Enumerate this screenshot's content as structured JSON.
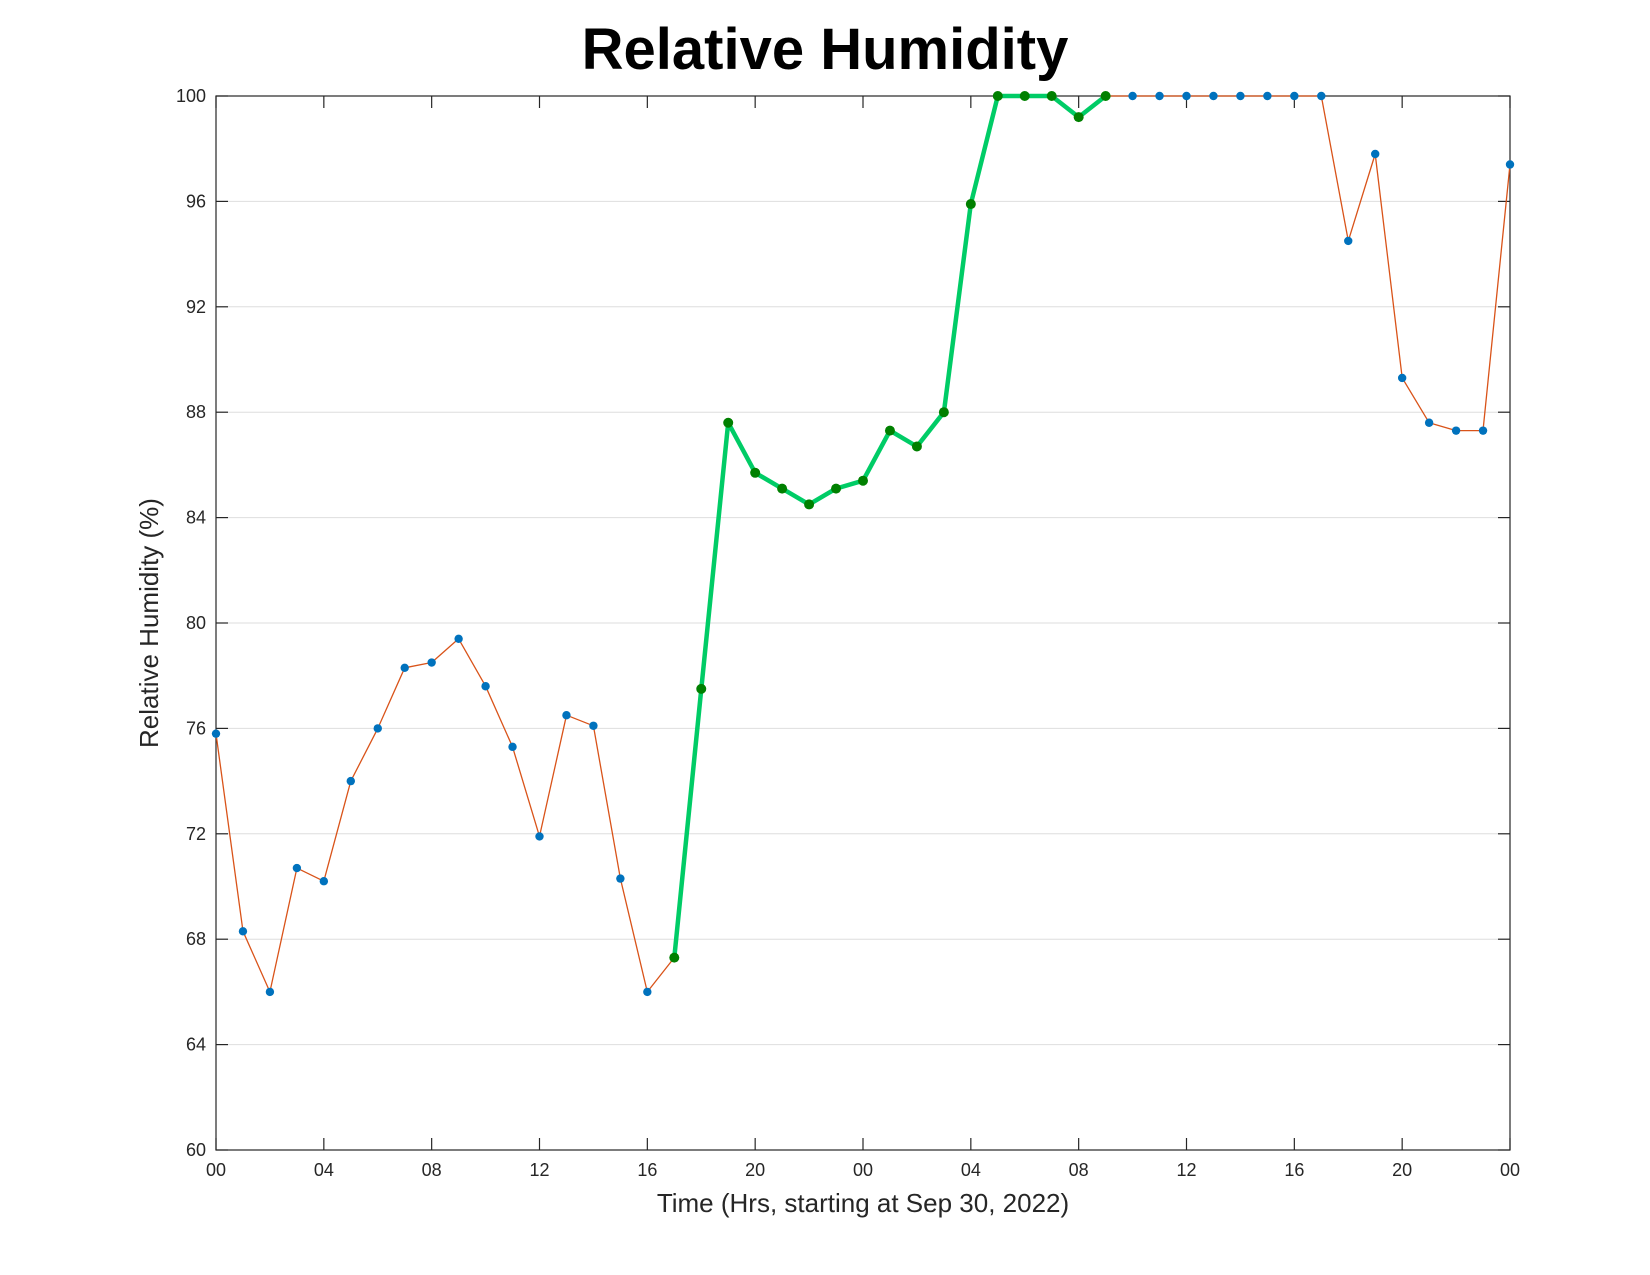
{
  "chart_data": {
    "type": "line",
    "title": "Relative Humidity",
    "xlabel": "Time (Hrs, starting at Sep 30, 2022)",
    "ylabel": "Relative Humidity (%)",
    "ylim": [
      60,
      100
    ],
    "xlim": [
      "2022-09-30 00:00",
      "2022-10-02 00:00"
    ],
    "yticks": [
      60,
      64,
      68,
      72,
      76,
      80,
      84,
      88,
      92,
      96,
      100
    ],
    "xticks": [
      {
        "time": "2022-09-30 00:00",
        "label": "00"
      },
      {
        "time": "2022-09-30 04:00",
        "label": "04"
      },
      {
        "time": "2022-09-30 08:00",
        "label": "08"
      },
      {
        "time": "2022-09-30 12:00",
        "label": "12"
      },
      {
        "time": "2022-09-30 16:00",
        "label": "16"
      },
      {
        "time": "2022-09-30 20:00",
        "label": "20"
      },
      {
        "time": "2022-10-01 00:00",
        "label": "00"
      },
      {
        "time": "2022-10-01 04:00",
        "label": "04"
      },
      {
        "time": "2022-10-01 08:00",
        "label": "08"
      },
      {
        "time": "2022-10-01 12:00",
        "label": "12"
      },
      {
        "time": "2022-10-01 16:00",
        "label": "16"
      },
      {
        "time": "2022-10-01 20:00",
        "label": "20"
      },
      {
        "time": "2022-10-02 00:00",
        "label": "00"
      }
    ],
    "grid": "horizontal",
    "colors": {
      "line": "#d95319",
      "marker": "#0072bd",
      "highlight_line": "#00cc66",
      "highlight_marker": "#008000"
    },
    "series": [
      {
        "x": [
          "2022-09-30 00:00",
          "2022-09-30 01:00",
          "2022-09-30 02:00",
          "2022-09-30 03:00",
          "2022-09-30 04:00",
          "2022-09-30 05:00",
          "2022-09-30 06:00",
          "2022-09-30 07:00",
          "2022-09-30 08:00",
          "2022-09-30 09:00",
          "2022-09-30 10:00",
          "2022-09-30 11:00",
          "2022-09-30 12:00",
          "2022-09-30 13:00",
          "2022-09-30 14:00",
          "2022-09-30 15:00",
          "2022-09-30 16:00",
          "2022-09-30 17:00",
          "2022-09-30 18:00",
          "2022-09-30 19:00",
          "2022-09-30 20:00",
          "2022-09-30 21:00",
          "2022-09-30 22:00",
          "2022-09-30 23:00",
          "2022-10-01 00:00",
          "2022-10-01 01:00",
          "2022-10-01 02:00",
          "2022-10-01 03:00",
          "2022-10-01 04:00",
          "2022-10-01 05:00",
          "2022-10-01 06:00",
          "2022-10-01 07:00",
          "2022-10-01 08:00",
          "2022-10-01 09:00",
          "2022-10-01 10:00",
          "2022-10-01 11:00",
          "2022-10-01 12:00",
          "2022-10-01 13:00",
          "2022-10-01 14:00",
          "2022-10-01 15:00",
          "2022-10-01 16:00",
          "2022-10-01 17:00",
          "2022-10-01 18:00",
          "2022-10-01 19:00",
          "2022-10-01 20:00",
          "2022-10-01 21:00",
          "2022-10-01 22:00",
          "2022-10-01 23:00",
          "2022-10-02 00:00"
        ],
        "y": [
          75.8,
          68.3,
          66.0,
          70.7,
          70.2,
          74.0,
          76.0,
          78.3,
          78.5,
          79.4,
          77.6,
          75.3,
          71.9,
          76.5,
          76.1,
          70.3,
          66.0,
          67.3,
          77.5,
          87.6,
          85.7,
          85.1,
          84.5,
          85.1,
          85.4,
          87.3,
          86.7,
          88.0,
          95.9,
          100.0,
          100.0,
          100.0,
          99.2,
          100.0,
          100.0,
          100.0,
          100.0,
          100.0,
          100.0,
          100.0,
          100.0,
          100.0,
          94.5,
          97.8,
          89.3,
          87.6,
          87.3,
          87.3,
          97.4
        ]
      },
      {
        "x": [
          "2022-09-30 17:00",
          "2022-09-30 18:00",
          "2022-09-30 19:00",
          "2022-09-30 20:00",
          "2022-09-30 21:00",
          "2022-09-30 22:00",
          "2022-09-30 23:00",
          "2022-10-01 00:00",
          "2022-10-01 01:00",
          "2022-10-01 02:00",
          "2022-10-01 03:00",
          "2022-10-01 04:00",
          "2022-10-01 05:00",
          "2022-10-01 06:00",
          "2022-10-01 07:00",
          "2022-10-01 08:00",
          "2022-10-01 09:00"
        ],
        "y": [
          67.3,
          77.5,
          87.6,
          85.7,
          85.1,
          84.5,
          85.1,
          85.4,
          87.3,
          86.7,
          88.0,
          95.9,
          100.0,
          100.0,
          100.0,
          99.2,
          100.0
        ]
      }
    ]
  }
}
